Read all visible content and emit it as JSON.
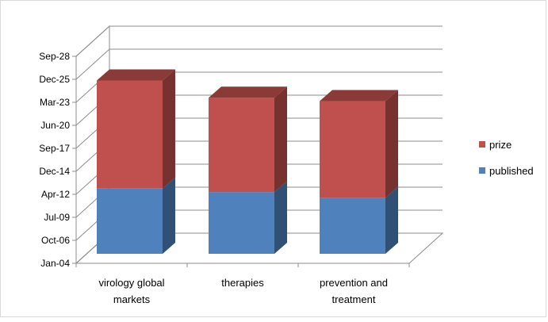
{
  "chart_data": {
    "type": "bar",
    "stacked": true,
    "three_d": true,
    "categories": [
      "virology global markets",
      "therapies",
      "prevention and treatment"
    ],
    "category_label_lines": [
      [
        "virology global",
        "markets"
      ],
      [
        "therapies"
      ],
      [
        "prevention and",
        "treatment"
      ]
    ],
    "y_ticks": [
      "Jan-04",
      "Oct-06",
      "Jul-09",
      "Apr-12",
      "Dec-14",
      "Sep-17",
      "Jun-20",
      "Mar-23",
      "Dec-25",
      "Sep-28"
    ],
    "ylim": [
      "Jan-04",
      "Sep-28"
    ],
    "series": [
      {
        "name": "published",
        "color": "#4f81bd",
        "values": [
          "Oct-14",
          "Aug-14",
          "Jan-14"
        ]
      },
      {
        "name": "prize",
        "color": "#c0504d",
        "values": [
          "Jun-26",
          "Sep-24",
          "Jun-24"
        ]
      }
    ],
    "segment_tops_ticks": [
      [
        3.25,
        7.95
      ],
      [
        3.1,
        7.2
      ],
      [
        2.85,
        7.05
      ]
    ],
    "legend_position": "right",
    "grid": true,
    "title": "",
    "xlabel": "",
    "ylabel": ""
  }
}
